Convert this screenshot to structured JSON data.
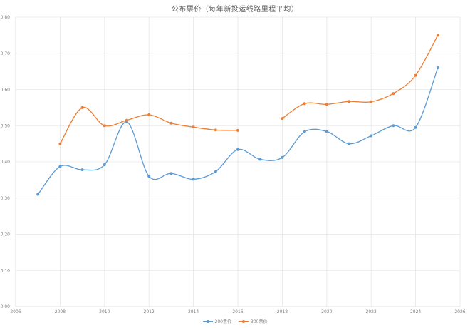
{
  "chart_data": {
    "type": "line",
    "title": "公布票价（每年新投运线路里程平均）",
    "xlabel": "",
    "ylabel": "",
    "xlim": [
      2006,
      2026
    ],
    "ylim": [
      0,
      0.8
    ],
    "x_ticks": [
      "2006",
      "2008",
      "2010",
      "2012",
      "2014",
      "2016",
      "2018",
      "2020",
      "2022",
      "2024",
      "2026"
    ],
    "y_ticks": [
      "0.00",
      "0.10",
      "0.20",
      "0.30",
      "0.40",
      "0.50",
      "0.60",
      "0.70",
      "0.80"
    ],
    "grid": true,
    "legend_position": "bottom",
    "smooth": true,
    "series": [
      {
        "name": "200票价",
        "color": "#5B9BD5",
        "points": [
          {
            "x": 2007,
            "y": 0.31
          },
          {
            "x": 2008,
            "y": 0.387
          },
          {
            "x": 2009,
            "y": 0.378
          },
          {
            "x": 2010,
            "y": 0.392
          },
          {
            "x": 2011,
            "y": 0.51
          },
          {
            "x": 2012,
            "y": 0.36
          },
          {
            "x": 2013,
            "y": 0.368
          },
          {
            "x": 2014,
            "y": 0.352
          },
          {
            "x": 2015,
            "y": 0.373
          },
          {
            "x": 2016,
            "y": 0.434
          },
          {
            "x": 2017,
            "y": 0.407
          },
          {
            "x": 2018,
            "y": 0.412
          },
          {
            "x": 2019,
            "y": 0.483
          },
          {
            "x": 2020,
            "y": 0.484
          },
          {
            "x": 2021,
            "y": 0.45
          },
          {
            "x": 2022,
            "y": 0.472
          },
          {
            "x": 2023,
            "y": 0.5
          },
          {
            "x": 2024,
            "y": 0.495
          },
          {
            "x": 2025,
            "y": 0.66
          }
        ]
      },
      {
        "name": "300票价",
        "color": "#ED7D31",
        "segments": [
          [
            {
              "x": 2008,
              "y": 0.45
            },
            {
              "x": 2009,
              "y": 0.55
            },
            {
              "x": 2010,
              "y": 0.5
            },
            {
              "x": 2011,
              "y": 0.515
            },
            {
              "x": 2012,
              "y": 0.53
            },
            {
              "x": 2013,
              "y": 0.507
            },
            {
              "x": 2014,
              "y": 0.496
            },
            {
              "x": 2015,
              "y": 0.488
            },
            {
              "x": 2016,
              "y": 0.487
            }
          ],
          [
            {
              "x": 2018,
              "y": 0.52
            },
            {
              "x": 2019,
              "y": 0.561
            },
            {
              "x": 2020,
              "y": 0.559
            },
            {
              "x": 2021,
              "y": 0.567
            },
            {
              "x": 2022,
              "y": 0.566
            },
            {
              "x": 2023,
              "y": 0.589
            },
            {
              "x": 2024,
              "y": 0.639
            },
            {
              "x": 2025,
              "y": 0.75
            }
          ]
        ]
      }
    ]
  },
  "legend": {
    "items": [
      {
        "label": "200票价",
        "color": "#5B9BD5"
      },
      {
        "label": "300票价",
        "color": "#ED7D31"
      }
    ]
  },
  "style": {
    "grid_color": "#e6e6e6",
    "axis_color": "#d9d9d9"
  }
}
